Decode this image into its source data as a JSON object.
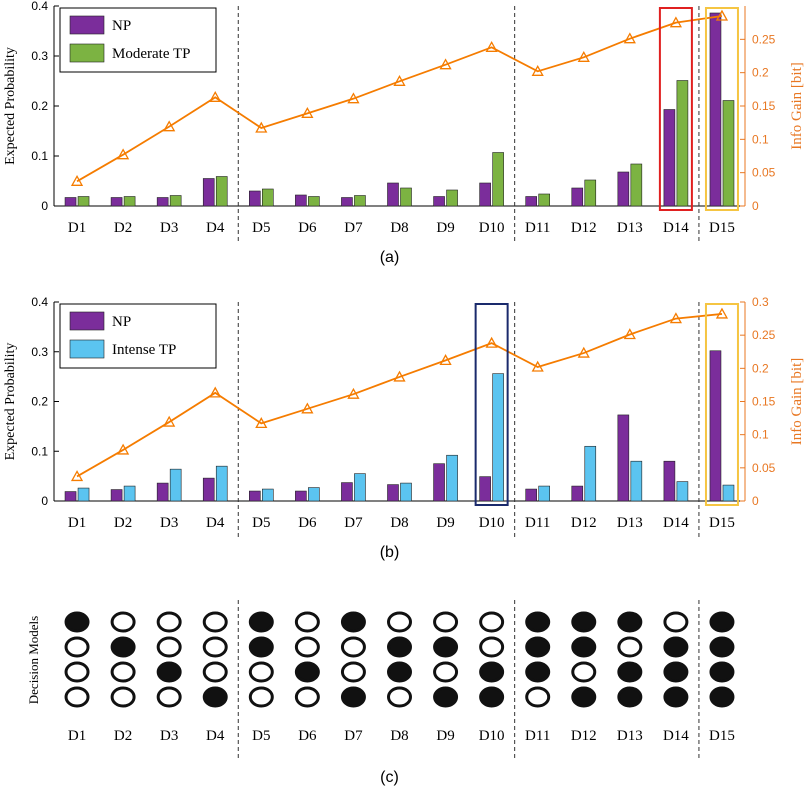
{
  "chart_data": [
    {
      "type": "bar",
      "panel_label": "(a)",
      "categories": [
        "D1",
        "D2",
        "D3",
        "D4",
        "D5",
        "D6",
        "D7",
        "D8",
        "D9",
        "D10",
        "D11",
        "D12",
        "D13",
        "D14",
        "D15"
      ],
      "series": [
        {
          "name": "NP",
          "color": "#7b2d9b",
          "values": [
            0.017,
            0.017,
            0.017,
            0.055,
            0.03,
            0.022,
            0.017,
            0.046,
            0.019,
            0.046,
            0.019,
            0.036,
            0.068,
            0.193,
            0.386
          ]
        },
        {
          "name": "Moderate TP",
          "color": "#7cb342",
          "values": [
            0.019,
            0.019,
            0.021,
            0.059,
            0.034,
            0.019,
            0.021,
            0.036,
            0.032,
            0.107,
            0.024,
            0.052,
            0.084,
            0.251,
            0.211
          ]
        }
      ],
      "line": {
        "name": "Info Gain",
        "color": "#f57c00",
        "values": [
          0.037,
          0.077,
          0.119,
          0.163,
          0.117,
          0.139,
          0.161,
          0.187,
          0.212,
          0.238,
          0.202,
          0.223,
          0.251,
          0.275,
          0.285
        ]
      },
      "ylabel": "Expected Probability",
      "y2label": "Info Gain [bit]",
      "ylim": [
        0,
        0.4
      ],
      "y2lim": [
        0,
        0.3
      ],
      "yticks": [
        "0",
        "0.1",
        "0.2",
        "0.3",
        "0.4"
      ],
      "y2ticks": [
        "0",
        "0.05",
        "0.1",
        "0.15",
        "0.2",
        "0.25"
      ],
      "group_separators_after": [
        "D4",
        "D10",
        "D14"
      ],
      "highlight_boxes": [
        {
          "category": "D14",
          "color": "#e02020"
        },
        {
          "category": "D15",
          "color": "#f5c542"
        }
      ],
      "legend_position": "top-left"
    },
    {
      "type": "bar",
      "panel_label": "(b)",
      "categories": [
        "D1",
        "D2",
        "D3",
        "D4",
        "D5",
        "D6",
        "D7",
        "D8",
        "D9",
        "D10",
        "D11",
        "D12",
        "D13",
        "D14",
        "D15"
      ],
      "series": [
        {
          "name": "NP",
          "color": "#7b2d9b",
          "values": [
            0.019,
            0.023,
            0.036,
            0.046,
            0.02,
            0.02,
            0.037,
            0.033,
            0.075,
            0.049,
            0.024,
            0.03,
            0.173,
            0.08,
            0.302
          ]
        },
        {
          "name": "Intense TP",
          "color": "#5bc4f0",
          "values": [
            0.026,
            0.03,
            0.064,
            0.07,
            0.024,
            0.027,
            0.055,
            0.036,
            0.092,
            0.256,
            0.03,
            0.11,
            0.08,
            0.039,
            0.032
          ]
        }
      ],
      "line": {
        "name": "Info Gain",
        "color": "#f57c00",
        "values": [
          0.037,
          0.077,
          0.119,
          0.163,
          0.117,
          0.139,
          0.161,
          0.187,
          0.212,
          0.238,
          0.202,
          0.223,
          0.251,
          0.275,
          0.282
        ]
      },
      "ylabel": "Expected Probability",
      "y2label": "Info Gain [bit]",
      "ylim": [
        0,
        0.4
      ],
      "y2lim": [
        0,
        0.3
      ],
      "yticks": [
        "0",
        "0.1",
        "0.2",
        "0.3",
        "0.4"
      ],
      "y2ticks": [
        "0",
        "0.05",
        "0.1",
        "0.15",
        "0.2",
        "0.25",
        "0.3"
      ],
      "group_separators_after": [
        "D4",
        "D10",
        "D14"
      ],
      "highlight_boxes": [
        {
          "category": "D10",
          "color": "#1a2a6c"
        },
        {
          "category": "D15",
          "color": "#f5c542"
        }
      ],
      "legend_position": "top-left"
    },
    {
      "type": "table",
      "panel_label": "(c)",
      "ylabel": "Decision Models",
      "categories": [
        "D1",
        "D2",
        "D3",
        "D4",
        "D5",
        "D6",
        "D7",
        "D8",
        "D9",
        "D10",
        "D11",
        "D12",
        "D13",
        "D14",
        "D15"
      ],
      "matrix_filled": [
        [
          1,
          0,
          0,
          0
        ],
        [
          0,
          1,
          0,
          0
        ],
        [
          0,
          0,
          1,
          0
        ],
        [
          0,
          0,
          0,
          1
        ],
        [
          1,
          1,
          0,
          0
        ],
        [
          0,
          0,
          1,
          0
        ],
        [
          1,
          0,
          0,
          1
        ],
        [
          0,
          1,
          1,
          0
        ],
        [
          0,
          1,
          0,
          1
        ],
        [
          0,
          0,
          1,
          1
        ],
        [
          1,
          1,
          1,
          0
        ],
        [
          1,
          1,
          0,
          1
        ],
        [
          1,
          0,
          1,
          1
        ],
        [
          0,
          1,
          1,
          1
        ],
        [
          1,
          1,
          1,
          1
        ]
      ],
      "group_separators_after": [
        "D4",
        "D10",
        "D14"
      ]
    }
  ]
}
